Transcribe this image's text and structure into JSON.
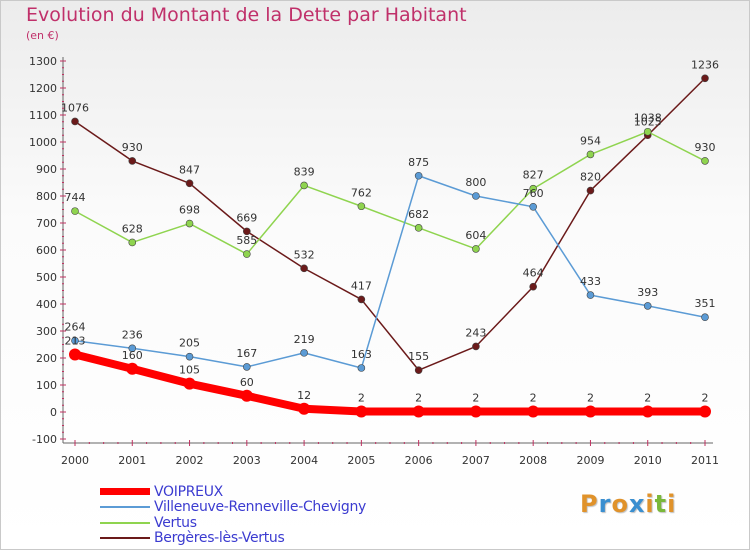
{
  "title": "Evolution du Montant de la Dette par Habitant",
  "subtitle": "(en €)",
  "logo": {
    "text": "Proxiti",
    "colors": [
      "#e0922a",
      "#3a8fd0",
      "#e0922a",
      "#3a8fd0",
      "#e0922a",
      "#7ab83a",
      "#e0922a"
    ]
  },
  "chart_data": {
    "type": "line",
    "x": [
      "2000",
      "2001",
      "2002",
      "2003",
      "2004",
      "2005",
      "2006",
      "2007",
      "2008",
      "2009",
      "2010",
      "2011"
    ],
    "ylim": [
      -100,
      1300
    ],
    "yticks": [
      -100,
      0,
      100,
      200,
      300,
      400,
      500,
      600,
      700,
      800,
      900,
      1000,
      1100,
      1200,
      1300
    ],
    "grid": false,
    "legend": "bottom-left",
    "series": [
      {
        "name": "VOIPREUX",
        "color": "#ff0000",
        "values": [
          213,
          160,
          105,
          60,
          12,
          2,
          2,
          2,
          2,
          2,
          2,
          2
        ]
      },
      {
        "name": "Villeneuve-Renneville-Chevigny",
        "color": "#5b9bd5",
        "values": [
          264,
          236,
          205,
          167,
          219,
          163,
          875,
          800,
          760,
          433,
          393,
          351
        ]
      },
      {
        "name": "Vertus",
        "color": "#8fd44f",
        "values": [
          744,
          628,
          698,
          585,
          839,
          762,
          682,
          604,
          827,
          954,
          1038,
          930
        ]
      },
      {
        "name": "Bergères-lès-Vertus",
        "color": "#6b1a1a",
        "values": [
          1076,
          930,
          847,
          669,
          532,
          417,
          155,
          243,
          464,
          820,
          1025,
          1236
        ]
      }
    ]
  }
}
